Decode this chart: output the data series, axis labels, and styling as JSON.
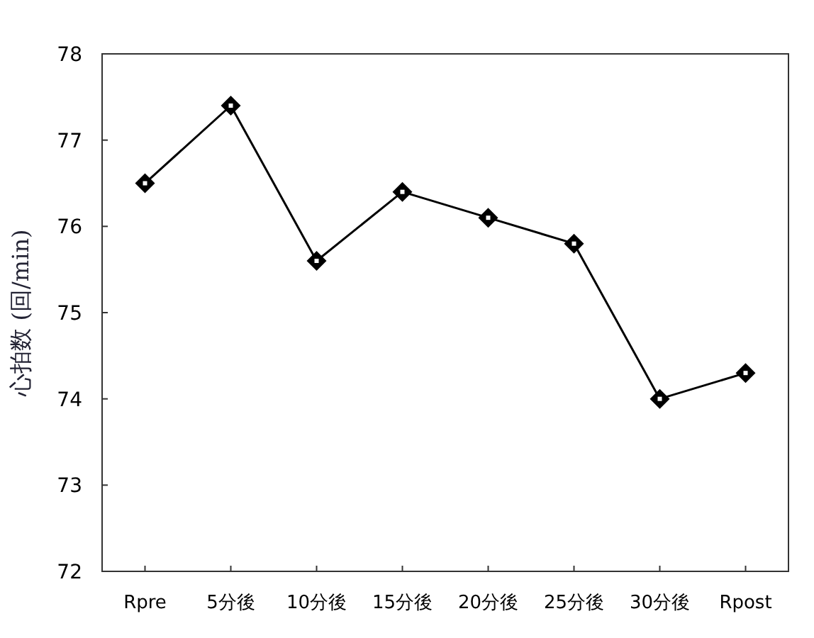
{
  "chart_data": {
    "type": "line",
    "ylabel": "心拍数 (回/min)",
    "categories": [
      "Rpre",
      "5分後",
      "10分後",
      "15分後",
      "20分後",
      "25分後",
      "30分後",
      "Rpost"
    ],
    "series": [
      {
        "color": "#000000",
        "values": [
          76.5,
          77.4,
          75.6,
          76.4,
          76.1,
          75.8,
          74.0,
          74.3
        ]
      }
    ],
    "ylim": [
      72,
      78
    ],
    "yticks": [
      72,
      73,
      74,
      75,
      76,
      77,
      78
    ],
    "marker": "diamond",
    "line_style": "solid",
    "grid": false
  }
}
